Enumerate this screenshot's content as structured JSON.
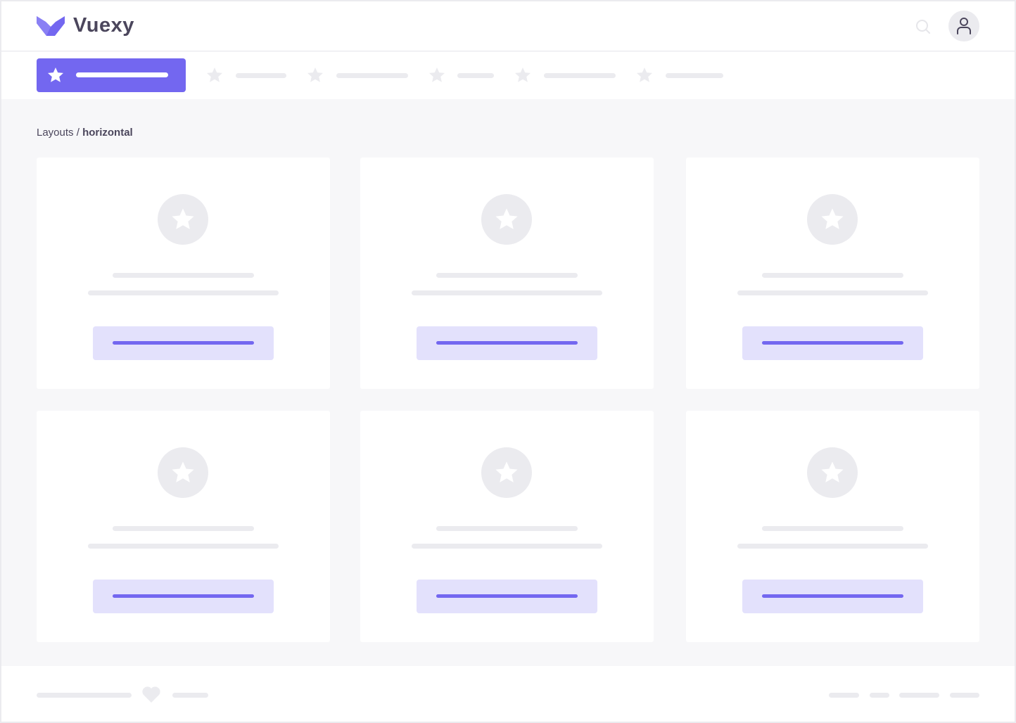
{
  "brand": {
    "name": "Vuexy",
    "color": "#7367f0"
  },
  "header": {
    "search_icon": "search-icon",
    "avatar_icon": "user-icon"
  },
  "nav": {
    "items": [
      {
        "icon": "star-icon",
        "active": true
      },
      {
        "icon": "star-icon"
      },
      {
        "icon": "star-icon"
      },
      {
        "icon": "star-icon"
      },
      {
        "icon": "star-icon"
      },
      {
        "icon": "star-icon"
      }
    ]
  },
  "breadcrumb": {
    "parent": "Layouts",
    "separator": " / ",
    "current": "horizontal"
  },
  "cards": [
    {
      "icon": "star-icon"
    },
    {
      "icon": "star-icon"
    },
    {
      "icon": "star-icon"
    },
    {
      "icon": "star-icon"
    },
    {
      "icon": "star-icon"
    },
    {
      "icon": "star-icon"
    }
  ],
  "footer": {
    "icon": "heart-icon"
  }
}
